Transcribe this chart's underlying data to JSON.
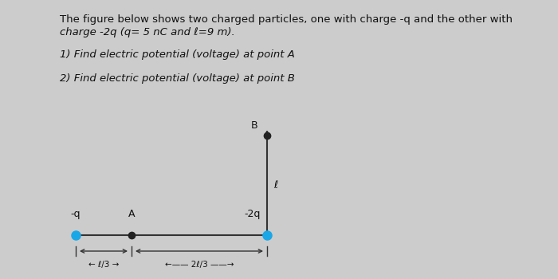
{
  "bg_color": "#cccccc",
  "text_line1": "The figure below shows two charged particles, one with charge -q and the other with",
  "text_line2": "charge -2q (q= 5 nC and ℓ=9 m).",
  "text_q1": "1) Find electric potential (voltage) at point A",
  "text_q2": "2) Find electric potential (voltage) at point B",
  "dot_color_charge": "#1aa7e8",
  "dot_color_point": "#222222",
  "label_neg_q": "-q",
  "label_A": "A",
  "label_neg2q": "-2q",
  "label_B": "B",
  "label_ell": "ℓ",
  "dim_label_left": "← ℓ/3 →",
  "dim_label_right": "←—— 2ℓ/3 ——→",
  "line_color": "#333333",
  "text_color": "#111111"
}
